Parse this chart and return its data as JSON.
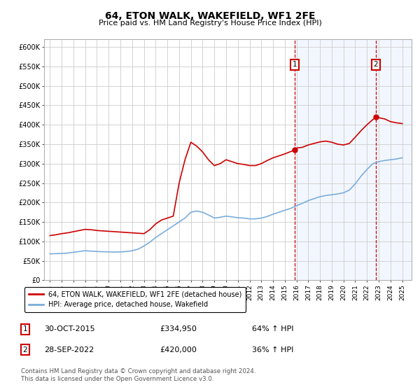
{
  "title": "64, ETON WALK, WAKEFIELD, WF1 2FE",
  "subtitle": "Price paid vs. HM Land Registry's House Price Index (HPI)",
  "title_fontsize": 10,
  "subtitle_fontsize": 8,
  "background_color": "#ffffff",
  "plot_bg_color": "#ffffff",
  "grid_color": "#cccccc",
  "shaded_region_color": "#cce0ff",
  "shaded_x_start": 2015.83,
  "sale1_x": 2015.83,
  "sale1_y": 334950,
  "sale1_label": "30-OCT-2015",
  "sale1_price": "£334,950",
  "sale1_pct": "64% ↑ HPI",
  "sale2_x": 2022.75,
  "sale2_y": 420000,
  "sale2_label": "28-SEP-2022",
  "sale2_price": "£420,000",
  "sale2_pct": "36% ↑ HPI",
  "legend_label_red": "64, ETON WALK, WAKEFIELD, WF1 2FE (detached house)",
  "legend_label_blue": "HPI: Average price, detached house, Wakefield",
  "footer": "Contains HM Land Registry data © Crown copyright and database right 2024.\nThis data is licensed under the Open Government Licence v3.0.",
  "red_color": "#cc0000",
  "blue_color": "#7aaddc",
  "ylim": [
    0,
    620000
  ],
  "xlim": [
    1994.5,
    2025.8
  ],
  "yticks": [
    0,
    50000,
    100000,
    150000,
    200000,
    250000,
    300000,
    350000,
    400000,
    450000,
    500000,
    550000,
    600000
  ],
  "ytick_labels": [
    "£0",
    "£50K",
    "£100K",
    "£150K",
    "£200K",
    "£250K",
    "£300K",
    "£350K",
    "£400K",
    "£450K",
    "£500K",
    "£550K",
    "£600K"
  ],
  "xticks": [
    1995,
    1996,
    1997,
    1998,
    1999,
    2000,
    2001,
    2002,
    2003,
    2004,
    2005,
    2006,
    2007,
    2008,
    2009,
    2010,
    2011,
    2012,
    2013,
    2014,
    2015,
    2016,
    2017,
    2018,
    2019,
    2020,
    2021,
    2022,
    2023,
    2024,
    2025
  ],
  "red_x": [
    1995.0,
    1995.5,
    1996.0,
    1996.5,
    1997.0,
    1997.5,
    1998.0,
    1998.5,
    1999.0,
    1999.5,
    2000.0,
    2000.5,
    2001.0,
    2001.5,
    2002.0,
    2002.5,
    2003.0,
    2003.5,
    2004.0,
    2004.5,
    2005.0,
    2005.5,
    2006.0,
    2006.5,
    2007.0,
    2007.5,
    2008.0,
    2008.5,
    2009.0,
    2009.5,
    2010.0,
    2010.5,
    2011.0,
    2011.5,
    2012.0,
    2012.5,
    2013.0,
    2013.5,
    2014.0,
    2014.5,
    2015.0,
    2015.83,
    2016.0,
    2016.5,
    2017.0,
    2017.5,
    2018.0,
    2018.5,
    2019.0,
    2019.5,
    2020.0,
    2020.5,
    2021.0,
    2021.5,
    2022.0,
    2022.75,
    2023.0,
    2023.5,
    2024.0,
    2024.5,
    2025.0
  ],
  "red_y": [
    115000,
    117000,
    120000,
    122000,
    125000,
    128000,
    131000,
    130000,
    128000,
    127000,
    126000,
    125000,
    124000,
    123000,
    122000,
    121000,
    120000,
    130000,
    145000,
    155000,
    160000,
    165000,
    250000,
    310000,
    355000,
    345000,
    330000,
    310000,
    295000,
    300000,
    310000,
    305000,
    300000,
    298000,
    295000,
    295000,
    300000,
    308000,
    315000,
    320000,
    325000,
    334950,
    340000,
    342000,
    348000,
    352000,
    356000,
    358000,
    355000,
    350000,
    348000,
    352000,
    368000,
    385000,
    400000,
    420000,
    418000,
    415000,
    408000,
    405000,
    403000
  ],
  "blue_x": [
    1995.0,
    1995.5,
    1996.0,
    1996.5,
    1997.0,
    1997.5,
    1998.0,
    1998.5,
    1999.0,
    1999.5,
    2000.0,
    2000.5,
    2001.0,
    2001.5,
    2002.0,
    2002.5,
    2003.0,
    2003.5,
    2004.0,
    2004.5,
    2005.0,
    2005.5,
    2006.0,
    2006.5,
    2007.0,
    2007.5,
    2008.0,
    2008.5,
    2009.0,
    2009.5,
    2010.0,
    2010.5,
    2011.0,
    2011.5,
    2012.0,
    2012.5,
    2013.0,
    2013.5,
    2014.0,
    2014.5,
    2015.0,
    2015.5,
    2016.0,
    2016.5,
    2017.0,
    2017.5,
    2018.0,
    2018.5,
    2019.0,
    2019.5,
    2020.0,
    2020.5,
    2021.0,
    2021.5,
    2022.0,
    2022.5,
    2023.0,
    2023.5,
    2024.0,
    2024.5,
    2025.0
  ],
  "blue_y": [
    68000,
    68500,
    69000,
    70000,
    72000,
    74000,
    76000,
    75000,
    74000,
    73500,
    73000,
    72500,
    73000,
    74000,
    76000,
    80000,
    88000,
    98000,
    110000,
    120000,
    130000,
    140000,
    150000,
    160000,
    175000,
    178000,
    175000,
    168000,
    160000,
    162000,
    165000,
    163000,
    161000,
    160000,
    158000,
    158000,
    160000,
    164000,
    170000,
    175000,
    180000,
    185000,
    192000,
    198000,
    205000,
    210000,
    215000,
    218000,
    220000,
    222000,
    225000,
    232000,
    248000,
    268000,
    285000,
    300000,
    305000,
    308000,
    310000,
    312000,
    315000
  ]
}
